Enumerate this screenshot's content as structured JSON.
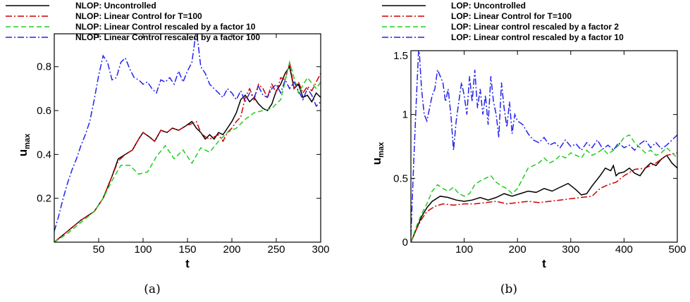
{
  "chart_data": [
    {
      "type": "line",
      "caption": "(a)",
      "xlabel": "t",
      "ylabel_main": "u",
      "ylabel_sub": "max",
      "xlim": [
        0,
        300
      ],
      "ylim": [
        0,
        0.95
      ],
      "xticks": [
        50,
        100,
        150,
        200,
        250,
        300
      ],
      "yticks": [
        0.2,
        0.4,
        0.6,
        0.8
      ],
      "legend_position": "top",
      "series": [
        {
          "name": "NLOP: Uncontrolled",
          "color": "#000000",
          "dash": "solid",
          "x": [
            0,
            15,
            30,
            45,
            55,
            65,
            72,
            80,
            88,
            95,
            100,
            107,
            113,
            120,
            127,
            133,
            140,
            148,
            155,
            160,
            165,
            170,
            175,
            180,
            185,
            190,
            195,
            200,
            205,
            210,
            215,
            220,
            225,
            230,
            235,
            240,
            245,
            250,
            255,
            260,
            265,
            270,
            275,
            280,
            285,
            290,
            295,
            300
          ],
          "y": [
            0,
            0.05,
            0.1,
            0.14,
            0.2,
            0.3,
            0.38,
            0.4,
            0.42,
            0.47,
            0.5,
            0.48,
            0.46,
            0.51,
            0.5,
            0.52,
            0.51,
            0.53,
            0.55,
            0.52,
            0.5,
            0.47,
            0.49,
            0.47,
            0.5,
            0.49,
            0.52,
            0.55,
            0.59,
            0.65,
            0.67,
            0.64,
            0.66,
            0.63,
            0.61,
            0.6,
            0.63,
            0.69,
            0.72,
            0.77,
            0.8,
            0.7,
            0.72,
            0.66,
            0.67,
            0.64,
            0.68,
            0.66
          ]
        },
        {
          "name": "NLOP: Linear Control for T=100",
          "color": "#cc0000",
          "dash": "dashdot",
          "x": [
            0,
            15,
            30,
            45,
            55,
            65,
            72,
            80,
            88,
            95,
            100,
            107,
            113,
            120,
            127,
            133,
            140,
            148,
            155,
            160,
            165,
            170,
            175,
            180,
            185,
            190,
            195,
            200,
            205,
            210,
            215,
            220,
            225,
            230,
            235,
            240,
            245,
            250,
            255,
            260,
            265,
            270,
            275,
            280,
            285,
            290,
            295,
            300
          ],
          "y": [
            0,
            0.05,
            0.1,
            0.14,
            0.2,
            0.3,
            0.37,
            0.4,
            0.42,
            0.47,
            0.5,
            0.48,
            0.46,
            0.51,
            0.5,
            0.52,
            0.51,
            0.53,
            0.54,
            0.55,
            0.5,
            0.48,
            0.47,
            0.48,
            0.49,
            0.46,
            0.5,
            0.52,
            0.55,
            0.57,
            0.66,
            0.7,
            0.65,
            0.72,
            0.7,
            0.66,
            0.72,
            0.68,
            0.75,
            0.74,
            0.82,
            0.7,
            0.73,
            0.68,
            0.71,
            0.69,
            0.73,
            0.77
          ]
        },
        {
          "name": "NLOP: Linear Control rescaled by a factor 10",
          "color": "#22cc22",
          "dash": "dashed",
          "x": [
            0,
            15,
            30,
            45,
            55,
            65,
            75,
            85,
            95,
            105,
            115,
            125,
            135,
            145,
            155,
            165,
            175,
            185,
            195,
            205,
            215,
            225,
            235,
            245,
            255,
            265,
            275,
            285,
            295,
            300
          ],
          "y": [
            0,
            0.04,
            0.09,
            0.14,
            0.2,
            0.28,
            0.35,
            0.35,
            0.31,
            0.32,
            0.39,
            0.44,
            0.38,
            0.42,
            0.36,
            0.43,
            0.41,
            0.46,
            0.5,
            0.52,
            0.56,
            0.59,
            0.6,
            0.61,
            0.65,
            0.82,
            0.68,
            0.75,
            0.7,
            0.73
          ]
        },
        {
          "name": "NLOP: Linear Control rescaled by a factor 100",
          "color": "#2222ee",
          "dash": "dashdot",
          "x": [
            0,
            5,
            10,
            15,
            20,
            25,
            30,
            35,
            40,
            45,
            50,
            55,
            60,
            65,
            70,
            75,
            80,
            85,
            90,
            95,
            100,
            105,
            110,
            115,
            120,
            125,
            130,
            135,
            140,
            145,
            150,
            155,
            160,
            165,
            170,
            175,
            180,
            185,
            190,
            195,
            200,
            205,
            210,
            215,
            220,
            225,
            230,
            235,
            240,
            245,
            250,
            255,
            260,
            265,
            270,
            275,
            280,
            285,
            290,
            295,
            300
          ],
          "y": [
            0.05,
            0.12,
            0.2,
            0.27,
            0.33,
            0.38,
            0.44,
            0.49,
            0.55,
            0.65,
            0.76,
            0.85,
            0.82,
            0.74,
            0.75,
            0.82,
            0.84,
            0.79,
            0.75,
            0.74,
            0.72,
            0.73,
            0.7,
            0.68,
            0.74,
            0.73,
            0.75,
            0.72,
            0.78,
            0.73,
            0.78,
            0.82,
            0.97,
            0.8,
            0.77,
            0.72,
            0.7,
            0.68,
            0.66,
            0.7,
            0.68,
            0.65,
            0.69,
            0.64,
            0.68,
            0.66,
            0.71,
            0.67,
            0.66,
            0.7,
            0.72,
            0.68,
            0.74,
            0.7,
            0.73,
            0.69,
            0.65,
            0.7,
            0.67,
            0.62,
            0.64
          ]
        }
      ]
    },
    {
      "type": "line",
      "caption": "(b)",
      "xlabel": "t",
      "ylabel_main": "u",
      "ylabel_sub": "max",
      "xlim": [
        0,
        500
      ],
      "ylim": [
        0,
        1.5
      ],
      "xticks": [
        100,
        200,
        300,
        400,
        500
      ],
      "yticks": [
        0,
        0.5,
        1,
        1.5
      ],
      "legend_position": "top",
      "series": [
        {
          "name": "LOP: Uncontrolled",
          "color": "#000000",
          "dash": "solid",
          "x": [
            0,
            10,
            20,
            30,
            40,
            55,
            70,
            85,
            100,
            115,
            130,
            145,
            160,
            175,
            190,
            205,
            220,
            235,
            250,
            265,
            280,
            295,
            310,
            320,
            330,
            340,
            355,
            365,
            375,
            380,
            385,
            390,
            400,
            410,
            420,
            430,
            440,
            450,
            460,
            470,
            480,
            490,
            500
          ],
          "y": [
            0,
            0.1,
            0.2,
            0.27,
            0.32,
            0.36,
            0.35,
            0.33,
            0.32,
            0.33,
            0.35,
            0.33,
            0.35,
            0.38,
            0.36,
            0.38,
            0.4,
            0.39,
            0.42,
            0.4,
            0.43,
            0.46,
            0.41,
            0.37,
            0.38,
            0.44,
            0.52,
            0.58,
            0.56,
            0.6,
            0.52,
            0.54,
            0.55,
            0.58,
            0.54,
            0.52,
            0.58,
            0.62,
            0.6,
            0.65,
            0.68,
            0.62,
            0.58
          ]
        },
        {
          "name": "LOP: Linear Control for T=100",
          "color": "#cc0000",
          "dash": "dashdot",
          "x": [
            0,
            10,
            20,
            30,
            45,
            60,
            80,
            100,
            120,
            140,
            160,
            180,
            200,
            220,
            240,
            260,
            280,
            300,
            320,
            340,
            355,
            370,
            385,
            400,
            420,
            440,
            460,
            480,
            500
          ],
          "y": [
            0,
            0.1,
            0.18,
            0.24,
            0.28,
            0.3,
            0.29,
            0.3,
            0.3,
            0.31,
            0.32,
            0.3,
            0.31,
            0.32,
            0.31,
            0.32,
            0.33,
            0.34,
            0.35,
            0.36,
            0.42,
            0.45,
            0.47,
            0.52,
            0.57,
            0.58,
            0.62,
            0.68,
            0.7
          ]
        },
        {
          "name": "LOP: Linear control rescaled by a factor 2",
          "color": "#22cc22",
          "dash": "dashed",
          "x": [
            0,
            10,
            20,
            30,
            40,
            50,
            60,
            70,
            80,
            90,
            100,
            110,
            120,
            130,
            140,
            150,
            160,
            170,
            180,
            190,
            200,
            210,
            220,
            230,
            240,
            250,
            260,
            270,
            280,
            290,
            300,
            310,
            320,
            330,
            340,
            350,
            360,
            370,
            380,
            390,
            400,
            410,
            420,
            430,
            440,
            450,
            460,
            470,
            480,
            490,
            500
          ],
          "y": [
            0,
            0.12,
            0.22,
            0.3,
            0.4,
            0.45,
            0.42,
            0.4,
            0.43,
            0.38,
            0.36,
            0.38,
            0.45,
            0.48,
            0.5,
            0.52,
            0.47,
            0.44,
            0.42,
            0.38,
            0.42,
            0.5,
            0.58,
            0.6,
            0.62,
            0.66,
            0.62,
            0.64,
            0.68,
            0.66,
            0.7,
            0.68,
            0.66,
            0.72,
            0.68,
            0.7,
            0.73,
            0.69,
            0.72,
            0.76,
            0.82,
            0.84,
            0.78,
            0.74,
            0.7,
            0.72,
            0.68,
            0.7,
            0.74,
            0.7,
            0.66
          ]
        },
        {
          "name": "LOP: Linear control rescaled by a factor 10",
          "color": "#2222ee",
          "dash": "dashdot",
          "x": [
            0,
            5,
            10,
            15,
            20,
            25,
            30,
            35,
            40,
            45,
            50,
            55,
            60,
            65,
            70,
            75,
            80,
            85,
            90,
            95,
            100,
            105,
            110,
            115,
            120,
            125,
            130,
            135,
            140,
            145,
            150,
            155,
            160,
            165,
            170,
            175,
            180,
            185,
            190,
            195,
            200,
            210,
            220,
            230,
            240,
            250,
            260,
            270,
            280,
            290,
            300,
            310,
            320,
            330,
            340,
            350,
            360,
            370,
            380,
            390,
            400,
            410,
            420,
            430,
            440,
            450,
            460,
            470,
            480,
            490,
            500
          ],
          "y": [
            0.05,
            0.6,
            1.1,
            1.55,
            1.2,
            1.0,
            0.95,
            1.05,
            1.15,
            1.2,
            1.35,
            1.3,
            1.25,
            1.1,
            1.2,
            1.0,
            0.72,
            0.95,
            1.1,
            1.25,
            1.15,
            1.0,
            1.3,
            1.1,
            1.35,
            1.05,
            1.2,
            1.0,
            1.15,
            0.92,
            1.3,
            1.1,
            1.0,
            0.82,
            1.25,
            1.05,
            0.9,
            1.1,
            0.85,
            1.0,
            0.95,
            0.92,
            0.85,
            0.8,
            0.78,
            0.82,
            0.76,
            0.78,
            0.74,
            0.8,
            0.75,
            0.77,
            0.72,
            0.78,
            0.74,
            0.8,
            0.73,
            0.76,
            0.72,
            0.78,
            0.74,
            0.76,
            0.72,
            0.77,
            0.8,
            0.74,
            0.78,
            0.73,
            0.76,
            0.8,
            0.84
          ]
        }
      ]
    }
  ]
}
